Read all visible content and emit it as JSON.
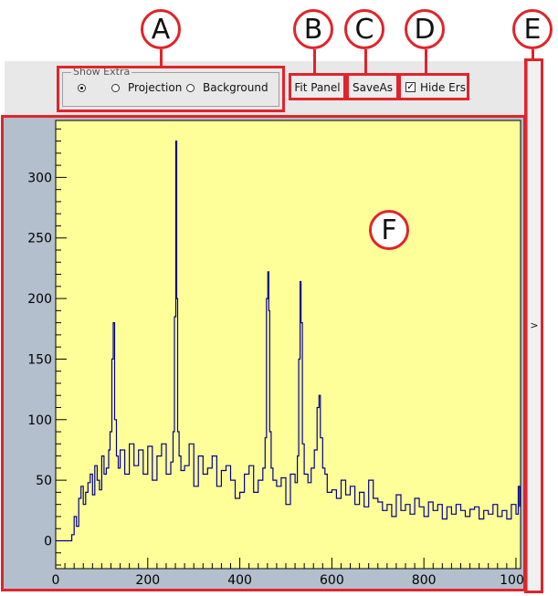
{
  "callouts": {
    "a": "A",
    "b": "B",
    "c": "C",
    "d": "D",
    "e": "E",
    "f": "F"
  },
  "show_extra": {
    "title": "Show Extra",
    "options": [
      {
        "label": "",
        "selected": true
      },
      {
        "label": "Projection",
        "selected": false
      },
      {
        "label": "Background",
        "selected": false
      }
    ]
  },
  "toolbar": {
    "fit_panel_label": "Fit Panel",
    "save_as_label": "SaveAs",
    "hide_errors_label": "Hide Ers",
    "hide_errors_checked": true
  },
  "sidebar": {
    "expand_glyph": ">"
  },
  "colors": {
    "plot_background": "#ffff99",
    "frame_background": "#b3bfcc",
    "series_line": "#00008b",
    "annotation": "#e0242b"
  },
  "chart_data": {
    "type": "line",
    "title": "",
    "xlabel": "",
    "ylabel": "",
    "xlim": [
      0,
      1010
    ],
    "ylim": [
      -23,
      347
    ],
    "x_ticks": [
      0,
      200,
      400,
      600,
      800,
      1000
    ],
    "y_ticks": [
      0,
      50,
      100,
      150,
      200,
      250,
      300
    ],
    "grid": false,
    "series": [
      {
        "x": [
          0,
          20,
          30,
          35,
          40,
          45,
          50,
          55,
          60,
          65,
          70,
          75,
          80,
          85,
          90,
          95,
          100,
          105,
          110,
          115,
          118,
          122,
          125,
          128,
          132,
          136,
          140,
          150,
          160,
          170,
          180,
          190,
          200,
          210,
          220,
          230,
          240,
          250,
          255,
          258,
          261,
          263,
          265,
          268,
          272,
          280,
          290,
          300,
          310,
          320,
          330,
          340,
          350,
          360,
          370,
          380,
          390,
          400,
          410,
          420,
          430,
          440,
          450,
          455,
          458,
          461,
          463,
          465,
          468,
          472,
          480,
          490,
          500,
          510,
          520,
          525,
          528,
          531,
          533,
          536,
          540,
          548,
          555,
          562,
          568,
          572,
          575,
          580,
          585,
          590,
          600,
          610,
          620,
          630,
          640,
          650,
          660,
          670,
          680,
          690,
          700,
          710,
          720,
          730,
          740,
          750,
          760,
          770,
          780,
          790,
          800,
          810,
          820,
          830,
          840,
          850,
          860,
          870,
          880,
          890,
          900,
          910,
          920,
          930,
          940,
          950,
          960,
          970,
          980,
          990,
          1000,
          1005,
          1008
        ],
        "y": [
          0,
          0,
          0,
          5,
          20,
          12,
          35,
          45,
          30,
          40,
          48,
          55,
          38,
          62,
          50,
          42,
          70,
          55,
          60,
          75,
          90,
          150,
          180,
          100,
          70,
          60,
          75,
          55,
          80,
          62,
          75,
          55,
          78,
          50,
          70,
          80,
          55,
          65,
          90,
          185,
          330,
          200,
          90,
          70,
          58,
          62,
          80,
          45,
          70,
          55,
          60,
          70,
          45,
          58,
          62,
          50,
          35,
          40,
          55,
          62,
          40,
          50,
          60,
          85,
          200,
          222,
          190,
          90,
          60,
          50,
          45,
          52,
          30,
          55,
          48,
          70,
          150,
          214,
          180,
          80,
          55,
          48,
          60,
          75,
          110,
          120,
          85,
          60,
          55,
          40,
          42,
          35,
          50,
          38,
          45,
          30,
          40,
          28,
          50,
          35,
          32,
          25,
          30,
          20,
          38,
          25,
          30,
          22,
          35,
          28,
          20,
          32,
          25,
          30,
          18,
          28,
          22,
          30,
          25,
          20,
          26,
          28,
          18,
          25,
          22,
          30,
          20,
          25,
          18,
          30,
          22,
          45,
          28
        ]
      }
    ]
  }
}
